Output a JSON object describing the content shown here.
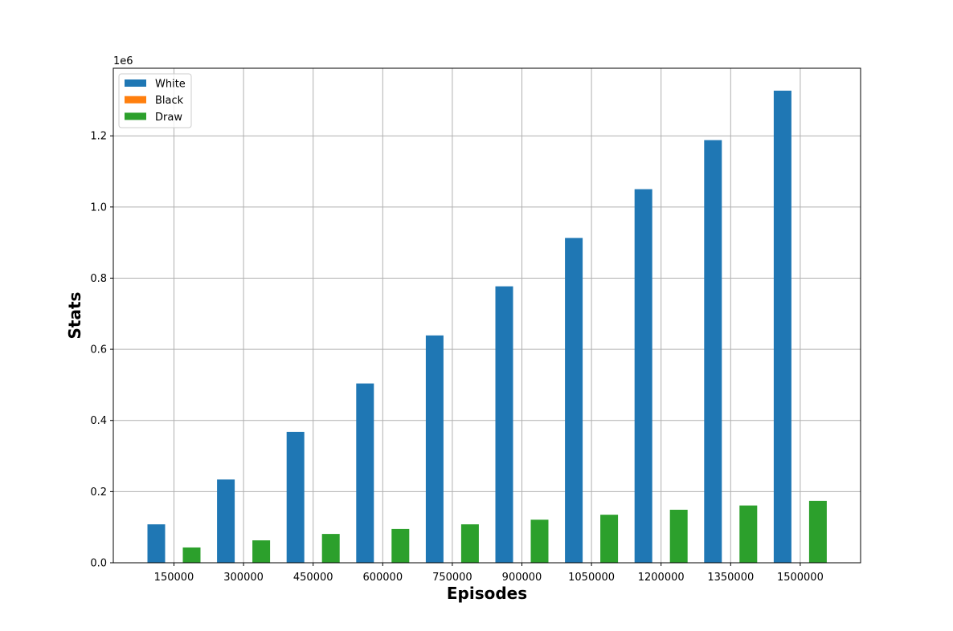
{
  "chart_data": {
    "type": "bar",
    "categories": [
      "150000",
      "300000",
      "450000",
      "600000",
      "750000",
      "900000",
      "1050000",
      "1200000",
      "1350000",
      "1500000"
    ],
    "series": [
      {
        "name": "White",
        "color": "#1f77b4",
        "values": [
          108000,
          234000,
          368000,
          504000,
          639000,
          777000,
          913000,
          1050000,
          1188000,
          1327000
        ]
      },
      {
        "name": "Black",
        "color": "#ff7f0e",
        "values": [
          0,
          0,
          0,
          0,
          0,
          0,
          0,
          0,
          0,
          0
        ]
      },
      {
        "name": "Draw",
        "color": "#2ca02c",
        "values": [
          43000,
          63000,
          81000,
          95000,
          108000,
          121000,
          135000,
          149000,
          161000,
          174000
        ]
      }
    ],
    "xlabel": "Episodes",
    "ylabel": "Stats",
    "ylim": [
      0,
      1390000
    ],
    "y_ticks": [
      "0.0",
      "0.2",
      "0.4",
      "0.6",
      "0.8",
      "1.0",
      "1.2"
    ],
    "y_tick_values": [
      0,
      200000,
      400000,
      600000,
      800000,
      1000000,
      1200000
    ],
    "y_offset_label": "1e6",
    "grid": true,
    "legend_position": "top-left"
  }
}
